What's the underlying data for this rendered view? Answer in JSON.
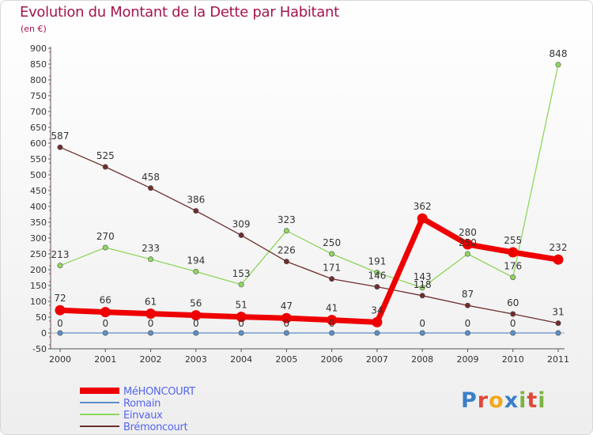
{
  "title": "Evolution du Montant de la Dette par Habitant",
  "unit_label": "(en €)",
  "brand": "Proxiti",
  "chart_data": {
    "type": "line",
    "x": [
      2000,
      2001,
      2002,
      2003,
      2004,
      2005,
      2006,
      2007,
      2008,
      2009,
      2010,
      2011
    ],
    "ylim": [
      -50,
      900
    ],
    "yticks": [
      -50,
      0,
      50,
      100,
      150,
      200,
      250,
      300,
      350,
      400,
      450,
      500,
      550,
      600,
      650,
      700,
      750,
      800,
      850,
      900
    ],
    "grid": false,
    "legend_position": "bottom-left",
    "series": [
      {
        "name": "MéHONCOURT",
        "color": "#ee0000",
        "values": [
          72,
          66,
          61,
          56,
          51,
          47,
          41,
          34,
          362,
          280,
          255,
          232
        ],
        "emphasis": true
      },
      {
        "name": "Romain",
        "color": "#5b8fc7",
        "values": [
          0,
          0,
          0,
          0,
          0,
          0,
          0,
          0,
          0,
          0,
          0,
          0
        ],
        "emphasis": false
      },
      {
        "name": "Einvaux",
        "color": "#8ed65e",
        "values": [
          213,
          270,
          233,
          194,
          153,
          323,
          250,
          191,
          143,
          250,
          176,
          848
        ],
        "emphasis": false
      },
      {
        "name": "Brémoncourt",
        "color": "#6e2e2e",
        "values": [
          587,
          525,
          458,
          386,
          309,
          226,
          171,
          146,
          118,
          87,
          60,
          31
        ],
        "emphasis": false
      }
    ],
    "data_labels": [
      {
        "series": 0,
        "labels": [
          "72",
          "66",
          "61",
          "56",
          "51",
          "47",
          "41",
          "34",
          "362",
          "280",
          "255",
          "232"
        ]
      },
      {
        "series": 1,
        "labels": [
          "0",
          "0",
          "0",
          "0",
          "0",
          "0",
          "0",
          "",
          "0",
          "0",
          "0",
          ""
        ]
      },
      {
        "series": 2,
        "labels": [
          "213",
          "270",
          "233",
          "194",
          "153",
          "323",
          "250",
          "191",
          "143",
          "250",
          "176",
          "848"
        ]
      },
      {
        "series": 3,
        "labels": [
          "587",
          "525",
          "458",
          "386",
          "309",
          "226",
          "171",
          "146",
          "118",
          "87",
          "60",
          "31"
        ]
      }
    ]
  }
}
